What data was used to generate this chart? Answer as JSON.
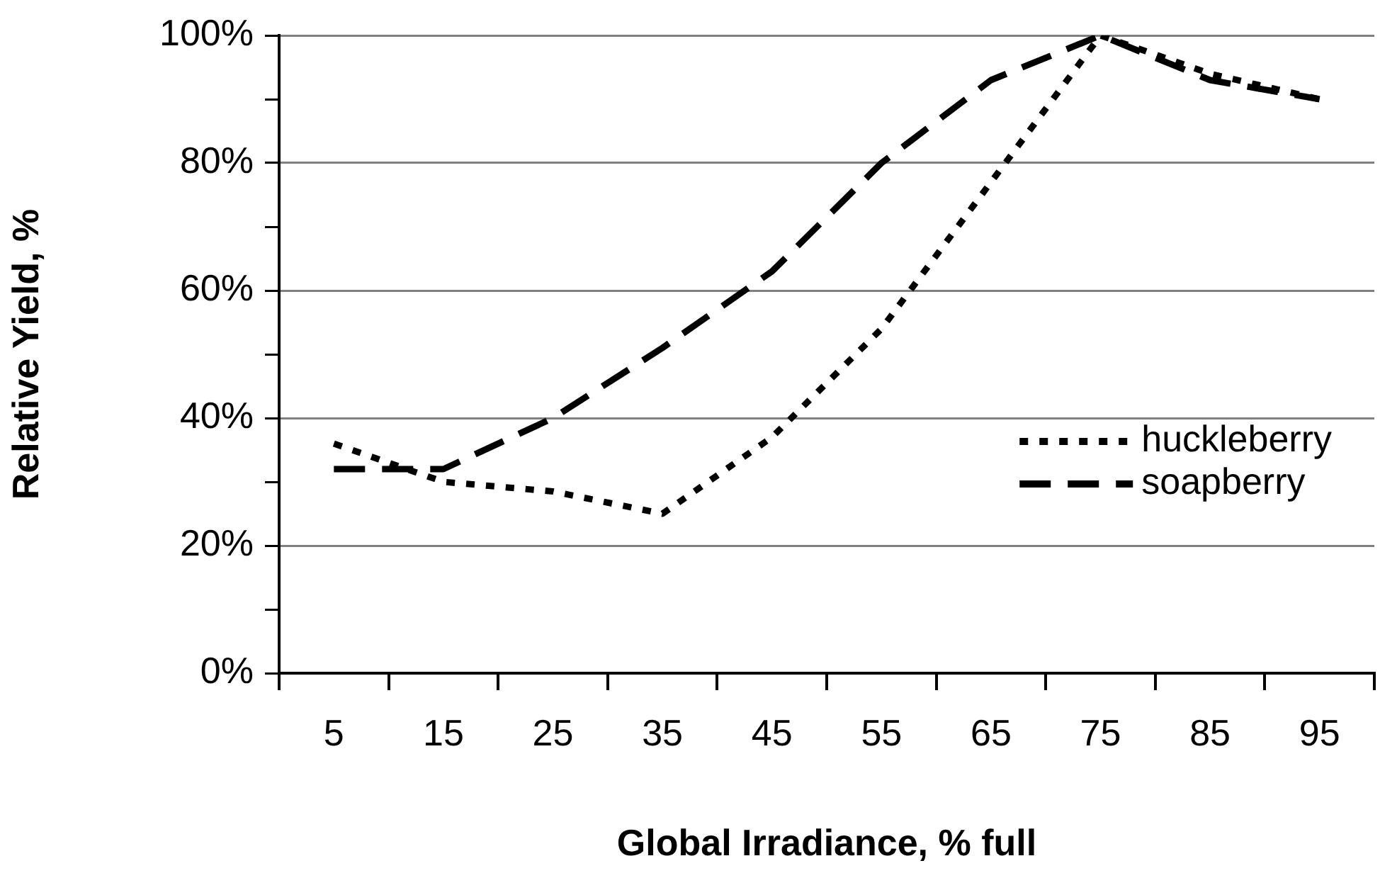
{
  "chart_data": {
    "type": "line",
    "xlabel": "Global Irradiance, % full",
    "ylabel": "Relative Yield, %",
    "categories": [
      "5",
      "15",
      "25",
      "35",
      "45",
      "55",
      "65",
      "75",
      "85",
      "95"
    ],
    "series": [
      {
        "name": "huckleberry",
        "color": "#000000",
        "line_style": "dotted",
        "values": [
          36,
          30,
          28.5,
          25,
          37,
          54,
          77,
          100,
          94,
          90
        ]
      },
      {
        "name": "soapberry",
        "color": "#000000",
        "line_style": "dashed",
        "values": [
          32,
          32,
          40,
          51,
          63,
          80,
          93,
          100,
          93,
          90
        ]
      }
    ],
    "ylim": [
      0,
      100
    ],
    "yticks": [
      {
        "value": 0,
        "label": "0%"
      },
      {
        "value": 10,
        "label": null
      },
      {
        "value": 20,
        "label": "20%"
      },
      {
        "value": 30,
        "label": null
      },
      {
        "value": 40,
        "label": "40%"
      },
      {
        "value": 50,
        "label": null
      },
      {
        "value": 60,
        "label": "60%"
      },
      {
        "value": 70,
        "label": null
      },
      {
        "value": 80,
        "label": "80%"
      },
      {
        "value": 90,
        "label": null
      },
      {
        "value": 100,
        "label": "100%"
      }
    ],
    "grid": "y",
    "legend": "right",
    "marker": "none"
  }
}
